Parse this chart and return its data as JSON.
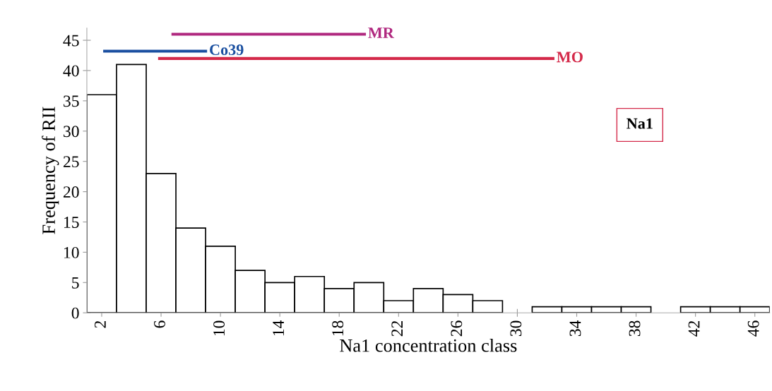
{
  "chart_data": {
    "type": "histogram",
    "xlabel": "Na1 concentration class",
    "ylabel": "Frequency of RII",
    "bins": [
      1,
      3,
      5,
      7,
      9,
      11,
      13,
      15,
      17,
      19,
      21,
      23,
      25,
      27,
      29,
      31,
      33,
      35,
      37,
      39,
      41,
      43,
      45,
      47
    ],
    "values": [
      36,
      41,
      23,
      14,
      11,
      7,
      5,
      6,
      4,
      5,
      2,
      4,
      3,
      2,
      0,
      1,
      1,
      1,
      1,
      0,
      1,
      1,
      1
    ],
    "color": "#ffffff",
    "series": [
      {
        "type": "line",
        "name": "Co39",
        "color": "#1a4fa0",
        "x": [
          2.1,
          9.1
        ],
        "values": [
          43.2,
          43.2
        ]
      },
      {
        "type": "line",
        "name": "MR",
        "color": "#b0287f",
        "x": [
          6.7,
          19.8
        ],
        "values": [
          46,
          46
        ]
      },
      {
        "type": "line",
        "name": "MO",
        "color": "#d42a4a",
        "x": [
          5.8,
          32.5
        ],
        "values": [
          42,
          42
        ]
      }
    ],
    "annotations": [
      "Na1"
    ],
    "xlim": [
      1,
      47
    ],
    "ylim": [
      0,
      47
    ],
    "xticks": [
      2,
      6,
      10,
      14,
      18,
      22,
      26,
      30,
      34,
      38,
      42,
      46
    ],
    "yticks": [
      0,
      5,
      10,
      15,
      20,
      25,
      30,
      35,
      40,
      45
    ],
    "grid": false,
    "legend": false
  }
}
